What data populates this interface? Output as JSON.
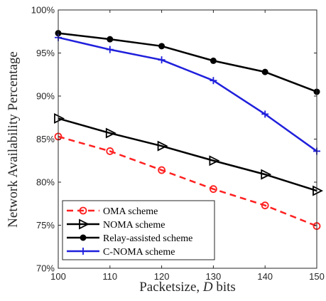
{
  "chart_data": {
    "type": "line",
    "title": "",
    "xlabel_main": "Packetsize, ",
    "xlabel_var": "D",
    "xlabel_unit": " bits",
    "ylabel": "Network Availability Percentage",
    "x": [
      100,
      110,
      120,
      130,
      140,
      150
    ],
    "xlim": [
      100,
      150
    ],
    "ylim": [
      70,
      100
    ],
    "xticks": [
      "100",
      "110",
      "120",
      "130",
      "140",
      "150"
    ],
    "yticks": [
      "70%",
      "75%",
      "80%",
      "85%",
      "90%",
      "95%",
      "100%"
    ],
    "grid": false,
    "legend_position": "bottom-left",
    "series": [
      {
        "name": "OMA scheme",
        "values": [
          85.3,
          83.6,
          81.4,
          79.2,
          77.3,
          74.9
        ],
        "color": "#ff2020",
        "marker": "circle-open",
        "line": "dashed"
      },
      {
        "name": "NOMA scheme",
        "values": [
          87.4,
          85.7,
          84.2,
          82.5,
          80.9,
          79.0
        ],
        "color": "#000000",
        "marker": "triangle-right",
        "line": "solid"
      },
      {
        "name": "Relay-assisted scheme",
        "values": [
          97.3,
          96.6,
          95.8,
          94.1,
          92.8,
          90.5
        ],
        "color": "#000000",
        "marker": "circle-filled",
        "line": "solid"
      },
      {
        "name": "C-NOMA scheme",
        "values": [
          96.8,
          95.4,
          94.2,
          91.8,
          87.9,
          83.6
        ],
        "color": "#1f1fdc",
        "marker": "plus",
        "line": "solid"
      }
    ]
  }
}
